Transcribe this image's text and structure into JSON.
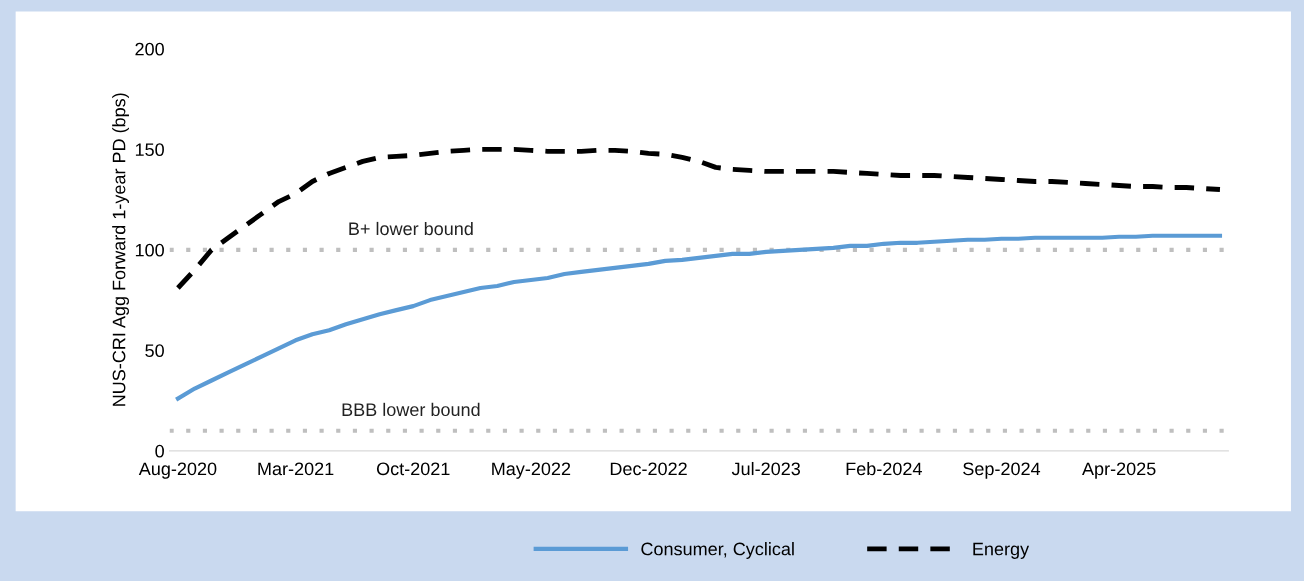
{
  "chart_data": {
    "type": "line",
    "ylabel": "NUS-CRI Agg Forward 1-year PD (bps)",
    "categories": [
      "Aug-2020",
      null,
      null,
      null,
      null,
      null,
      null,
      "Mar-2021",
      null,
      null,
      null,
      null,
      null,
      null,
      "Oct-2021",
      null,
      null,
      null,
      null,
      null,
      null,
      "May-2022",
      null,
      null,
      null,
      null,
      null,
      null,
      "Dec-2022",
      null,
      null,
      null,
      null,
      null,
      null,
      "Jul-2023",
      null,
      null,
      null,
      null,
      null,
      null,
      "Feb-2024",
      null,
      null,
      null,
      null,
      null,
      null,
      "Sep-2024",
      null,
      null,
      null,
      null,
      null,
      null,
      "Apr-2025",
      null,
      null,
      null,
      null,
      null,
      null
    ],
    "series": [
      {
        "name": "Consumer, Cyclical",
        "color": "#5b9bd5",
        "line_style": "solid",
        "values": [
          26,
          31,
          35,
          39,
          43,
          47,
          51,
          55,
          58,
          60,
          63,
          65.5,
          68,
          70,
          72,
          75,
          77,
          79,
          81,
          82,
          84,
          85,
          86,
          88,
          89,
          90,
          91,
          92,
          93,
          94.5,
          95,
          96,
          97,
          98,
          98,
          99,
          99.5,
          100,
          100.5,
          101,
          102,
          102,
          103,
          103.5,
          103.5,
          104,
          104.5,
          105,
          105,
          105.5,
          105.5,
          106,
          106,
          106,
          106,
          106,
          106.5,
          106.5,
          107,
          107,
          107,
          107,
          107
        ]
      },
      {
        "name": "Energy",
        "color": "#000000",
        "line_style": "dashed",
        "values": [
          81,
          90,
          100,
          106,
          112,
          118,
          124,
          128,
          134,
          138,
          141,
          144,
          146,
          146.5,
          147,
          148,
          149,
          149.5,
          150,
          150,
          150,
          149.5,
          149,
          149,
          149,
          149.5,
          149.5,
          149,
          148,
          147.5,
          146,
          144,
          141,
          140,
          139.5,
          139,
          139,
          139,
          139,
          139,
          138.5,
          138,
          137.5,
          137,
          137,
          137,
          136.5,
          136,
          135.5,
          135,
          134.5,
          134,
          134,
          133.5,
          133,
          132.5,
          132,
          131.5,
          131.5,
          131,
          131,
          130.5,
          130
        ]
      }
    ],
    "ylim": [
      0,
      200
    ],
    "yticks": [
      0,
      50,
      100,
      150,
      200
    ],
    "grid": false,
    "legend": "bottom",
    "marker": "none",
    "ref_lines": [
      {
        "axis": "y",
        "value": 100,
        "label": "B+ lower bound",
        "color": "#bfbfbf",
        "line_style": "dotted"
      },
      {
        "axis": "y",
        "value": 10,
        "label": "BBB lower bound",
        "color": "#bfbfbf",
        "line_style": "dotted"
      }
    ]
  }
}
